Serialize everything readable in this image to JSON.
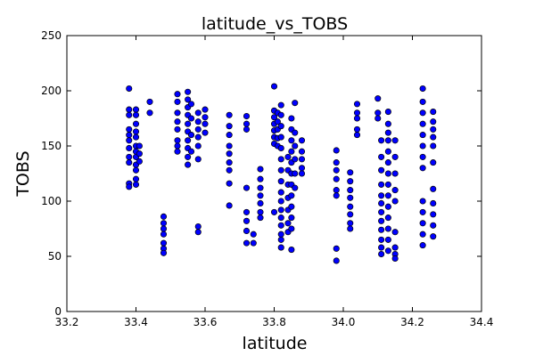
{
  "chart_data": {
    "type": "scatter",
    "title": "latitude_vs_TOBS",
    "xlabel": "latitude",
    "ylabel": "TOBS",
    "xlim": [
      33.2,
      34.4
    ],
    "ylim": [
      0,
      250
    ],
    "xticks": [
      "33.2",
      "33.4",
      "33.6",
      "33.8",
      "34.0",
      "34.2",
      "34.4"
    ],
    "yticks": [
      "0",
      "50",
      "100",
      "150",
      "200",
      "250"
    ],
    "grid": false,
    "marker_color": "#0000ff",
    "marker_edge_color": "#000000",
    "series": [
      {
        "values": [
          {
            "x": 33.38,
            "y": 202
          },
          {
            "x": 33.38,
            "y": 183
          },
          {
            "x": 33.38,
            "y": 178
          },
          {
            "x": 33.38,
            "y": 165
          },
          {
            "x": 33.38,
            "y": 160
          },
          {
            "x": 33.38,
            "y": 155
          },
          {
            "x": 33.38,
            "y": 148
          },
          {
            "x": 33.38,
            "y": 140
          },
          {
            "x": 33.38,
            "y": 135
          },
          {
            "x": 33.38,
            "y": 116
          },
          {
            "x": 33.38,
            "y": 113
          },
          {
            "x": 33.4,
            "y": 183
          },
          {
            "x": 33.4,
            "y": 178
          },
          {
            "x": 33.4,
            "y": 170
          },
          {
            "x": 33.4,
            "y": 163
          },
          {
            "x": 33.4,
            "y": 158
          },
          {
            "x": 33.4,
            "y": 150
          },
          {
            "x": 33.4,
            "y": 145
          },
          {
            "x": 33.4,
            "y": 140
          },
          {
            "x": 33.4,
            "y": 133
          },
          {
            "x": 33.4,
            "y": 128
          },
          {
            "x": 33.4,
            "y": 120
          },
          {
            "x": 33.4,
            "y": 115
          },
          {
            "x": 33.41,
            "y": 150
          },
          {
            "x": 33.41,
            "y": 143
          },
          {
            "x": 33.41,
            "y": 136
          },
          {
            "x": 33.44,
            "y": 190
          },
          {
            "x": 33.44,
            "y": 180
          },
          {
            "x": 33.48,
            "y": 86
          },
          {
            "x": 33.48,
            "y": 80
          },
          {
            "x": 33.48,
            "y": 75
          },
          {
            "x": 33.48,
            "y": 70
          },
          {
            "x": 33.48,
            "y": 62
          },
          {
            "x": 33.48,
            "y": 57
          },
          {
            "x": 33.48,
            "y": 53
          },
          {
            "x": 33.52,
            "y": 197
          },
          {
            "x": 33.52,
            "y": 190
          },
          {
            "x": 33.52,
            "y": 180
          },
          {
            "x": 33.52,
            "y": 172
          },
          {
            "x": 33.52,
            "y": 165
          },
          {
            "x": 33.52,
            "y": 155
          },
          {
            "x": 33.52,
            "y": 150
          },
          {
            "x": 33.52,
            "y": 145
          },
          {
            "x": 33.55,
            "y": 199
          },
          {
            "x": 33.55,
            "y": 192
          },
          {
            "x": 33.55,
            "y": 185
          },
          {
            "x": 33.55,
            "y": 178
          },
          {
            "x": 33.55,
            "y": 170
          },
          {
            "x": 33.55,
            "y": 163
          },
          {
            "x": 33.55,
            "y": 155
          },
          {
            "x": 33.55,
            "y": 148
          },
          {
            "x": 33.55,
            "y": 140
          },
          {
            "x": 33.55,
            "y": 133
          },
          {
            "x": 33.56,
            "y": 188
          },
          {
            "x": 33.56,
            "y": 175
          },
          {
            "x": 33.56,
            "y": 160
          },
          {
            "x": 33.56,
            "y": 145
          },
          {
            "x": 33.58,
            "y": 180
          },
          {
            "x": 33.58,
            "y": 172
          },
          {
            "x": 33.58,
            "y": 165
          },
          {
            "x": 33.58,
            "y": 158
          },
          {
            "x": 33.58,
            "y": 150
          },
          {
            "x": 33.58,
            "y": 138
          },
          {
            "x": 33.58,
            "y": 77
          },
          {
            "x": 33.58,
            "y": 72
          },
          {
            "x": 33.6,
            "y": 183
          },
          {
            "x": 33.6,
            "y": 176
          },
          {
            "x": 33.6,
            "y": 170
          },
          {
            "x": 33.6,
            "y": 162
          },
          {
            "x": 33.67,
            "y": 178
          },
          {
            "x": 33.67,
            "y": 168
          },
          {
            "x": 33.67,
            "y": 160
          },
          {
            "x": 33.67,
            "y": 150
          },
          {
            "x": 33.67,
            "y": 143
          },
          {
            "x": 33.67,
            "y": 135
          },
          {
            "x": 33.67,
            "y": 128
          },
          {
            "x": 33.67,
            "y": 116
          },
          {
            "x": 33.67,
            "y": 96
          },
          {
            "x": 33.72,
            "y": 177
          },
          {
            "x": 33.72,
            "y": 170
          },
          {
            "x": 33.72,
            "y": 165
          },
          {
            "x": 33.72,
            "y": 112
          },
          {
            "x": 33.72,
            "y": 90
          },
          {
            "x": 33.72,
            "y": 82
          },
          {
            "x": 33.72,
            "y": 73
          },
          {
            "x": 33.72,
            "y": 62
          },
          {
            "x": 33.74,
            "y": 70
          },
          {
            "x": 33.74,
            "y": 62
          },
          {
            "x": 33.76,
            "y": 129
          },
          {
            "x": 33.76,
            "y": 120
          },
          {
            "x": 33.76,
            "y": 112
          },
          {
            "x": 33.76,
            "y": 105
          },
          {
            "x": 33.76,
            "y": 98
          },
          {
            "x": 33.76,
            "y": 90
          },
          {
            "x": 33.76,
            "y": 85
          },
          {
            "x": 33.8,
            "y": 204
          },
          {
            "x": 33.8,
            "y": 182
          },
          {
            "x": 33.8,
            "y": 176
          },
          {
            "x": 33.8,
            "y": 170
          },
          {
            "x": 33.8,
            "y": 164
          },
          {
            "x": 33.8,
            "y": 158
          },
          {
            "x": 33.8,
            "y": 152
          },
          {
            "x": 33.8,
            "y": 90
          },
          {
            "x": 33.81,
            "y": 180
          },
          {
            "x": 33.81,
            "y": 172
          },
          {
            "x": 33.81,
            "y": 165
          },
          {
            "x": 33.81,
            "y": 157
          },
          {
            "x": 33.81,
            "y": 150
          },
          {
            "x": 33.82,
            "y": 187
          },
          {
            "x": 33.82,
            "y": 178
          },
          {
            "x": 33.82,
            "y": 168
          },
          {
            "x": 33.82,
            "y": 158
          },
          {
            "x": 33.82,
            "y": 148
          },
          {
            "x": 33.82,
            "y": 138
          },
          {
            "x": 33.82,
            "y": 128
          },
          {
            "x": 33.82,
            "y": 118
          },
          {
            "x": 33.82,
            "y": 108
          },
          {
            "x": 33.82,
            "y": 100
          },
          {
            "x": 33.82,
            "y": 92
          },
          {
            "x": 33.82,
            "y": 85
          },
          {
            "x": 33.82,
            "y": 78
          },
          {
            "x": 33.82,
            "y": 70
          },
          {
            "x": 33.82,
            "y": 65
          },
          {
            "x": 33.82,
            "y": 58
          },
          {
            "x": 33.84,
            "y": 140
          },
          {
            "x": 33.84,
            "y": 128
          },
          {
            "x": 33.84,
            "y": 115
          },
          {
            "x": 33.84,
            "y": 103
          },
          {
            "x": 33.84,
            "y": 92
          },
          {
            "x": 33.84,
            "y": 80
          },
          {
            "x": 33.84,
            "y": 72
          },
          {
            "x": 33.85,
            "y": 175
          },
          {
            "x": 33.85,
            "y": 165
          },
          {
            "x": 33.85,
            "y": 155
          },
          {
            "x": 33.85,
            "y": 145
          },
          {
            "x": 33.85,
            "y": 135
          },
          {
            "x": 33.85,
            "y": 125
          },
          {
            "x": 33.85,
            "y": 115
          },
          {
            "x": 33.85,
            "y": 105
          },
          {
            "x": 33.85,
            "y": 95
          },
          {
            "x": 33.85,
            "y": 85
          },
          {
            "x": 33.85,
            "y": 75
          },
          {
            "x": 33.85,
            "y": 56
          },
          {
            "x": 33.86,
            "y": 189
          },
          {
            "x": 33.86,
            "y": 162
          },
          {
            "x": 33.86,
            "y": 150
          },
          {
            "x": 33.86,
            "y": 138
          },
          {
            "x": 33.86,
            "y": 125
          },
          {
            "x": 33.86,
            "y": 112
          },
          {
            "x": 33.88,
            "y": 155
          },
          {
            "x": 33.88,
            "y": 145
          },
          {
            "x": 33.88,
            "y": 138
          },
          {
            "x": 33.88,
            "y": 130
          },
          {
            "x": 33.88,
            "y": 125
          },
          {
            "x": 33.98,
            "y": 146
          },
          {
            "x": 33.98,
            "y": 135
          },
          {
            "x": 33.98,
            "y": 128
          },
          {
            "x": 33.98,
            "y": 120
          },
          {
            "x": 33.98,
            "y": 110
          },
          {
            "x": 33.98,
            "y": 105
          },
          {
            "x": 33.98,
            "y": 57
          },
          {
            "x": 33.98,
            "y": 46
          },
          {
            "x": 34.02,
            "y": 126
          },
          {
            "x": 34.02,
            "y": 118
          },
          {
            "x": 34.02,
            "y": 110
          },
          {
            "x": 34.02,
            "y": 103
          },
          {
            "x": 34.02,
            "y": 95
          },
          {
            "x": 34.02,
            "y": 88
          },
          {
            "x": 34.02,
            "y": 80
          },
          {
            "x": 34.02,
            "y": 75
          },
          {
            "x": 34.04,
            "y": 188
          },
          {
            "x": 34.04,
            "y": 180
          },
          {
            "x": 34.04,
            "y": 175
          },
          {
            "x": 34.04,
            "y": 165
          },
          {
            "x": 34.04,
            "y": 160
          },
          {
            "x": 34.1,
            "y": 193
          },
          {
            "x": 34.1,
            "y": 180
          },
          {
            "x": 34.1,
            "y": 175
          },
          {
            "x": 34.11,
            "y": 155
          },
          {
            "x": 34.11,
            "y": 140
          },
          {
            "x": 34.11,
            "y": 128
          },
          {
            "x": 34.11,
            "y": 115
          },
          {
            "x": 34.11,
            "y": 105
          },
          {
            "x": 34.11,
            "y": 98
          },
          {
            "x": 34.11,
            "y": 90
          },
          {
            "x": 34.11,
            "y": 82
          },
          {
            "x": 34.11,
            "y": 74
          },
          {
            "x": 34.11,
            "y": 65
          },
          {
            "x": 34.11,
            "y": 58
          },
          {
            "x": 34.11,
            "y": 52
          },
          {
            "x": 34.13,
            "y": 181
          },
          {
            "x": 34.13,
            "y": 170
          },
          {
            "x": 34.13,
            "y": 162
          },
          {
            "x": 34.13,
            "y": 155
          },
          {
            "x": 34.13,
            "y": 145
          },
          {
            "x": 34.13,
            "y": 135
          },
          {
            "x": 34.13,
            "y": 125
          },
          {
            "x": 34.13,
            "y": 115
          },
          {
            "x": 34.13,
            "y": 105
          },
          {
            "x": 34.13,
            "y": 95
          },
          {
            "x": 34.13,
            "y": 85
          },
          {
            "x": 34.13,
            "y": 75
          },
          {
            "x": 34.13,
            "y": 65
          },
          {
            "x": 34.13,
            "y": 55
          },
          {
            "x": 34.15,
            "y": 155
          },
          {
            "x": 34.15,
            "y": 140
          },
          {
            "x": 34.15,
            "y": 125
          },
          {
            "x": 34.15,
            "y": 110
          },
          {
            "x": 34.15,
            "y": 100
          },
          {
            "x": 34.15,
            "y": 72
          },
          {
            "x": 34.15,
            "y": 58
          },
          {
            "x": 34.15,
            "y": 52
          },
          {
            "x": 34.15,
            "y": 48
          },
          {
            "x": 34.23,
            "y": 202
          },
          {
            "x": 34.23,
            "y": 190
          },
          {
            "x": 34.23,
            "y": 180
          },
          {
            "x": 34.23,
            "y": 170
          },
          {
            "x": 34.23,
            "y": 160
          },
          {
            "x": 34.23,
            "y": 150
          },
          {
            "x": 34.23,
            "y": 140
          },
          {
            "x": 34.23,
            "y": 130
          },
          {
            "x": 34.23,
            "y": 100
          },
          {
            "x": 34.23,
            "y": 90
          },
          {
            "x": 34.23,
            "y": 80
          },
          {
            "x": 34.23,
            "y": 70
          },
          {
            "x": 34.23,
            "y": 60
          },
          {
            "x": 34.26,
            "y": 181
          },
          {
            "x": 34.26,
            "y": 172
          },
          {
            "x": 34.26,
            "y": 165
          },
          {
            "x": 34.26,
            "y": 158
          },
          {
            "x": 34.26,
            "y": 150
          },
          {
            "x": 34.26,
            "y": 135
          },
          {
            "x": 34.26,
            "y": 111
          },
          {
            "x": 34.26,
            "y": 98
          },
          {
            "x": 34.26,
            "y": 88
          },
          {
            "x": 34.26,
            "y": 78
          },
          {
            "x": 34.26,
            "y": 68
          }
        ]
      }
    ]
  }
}
